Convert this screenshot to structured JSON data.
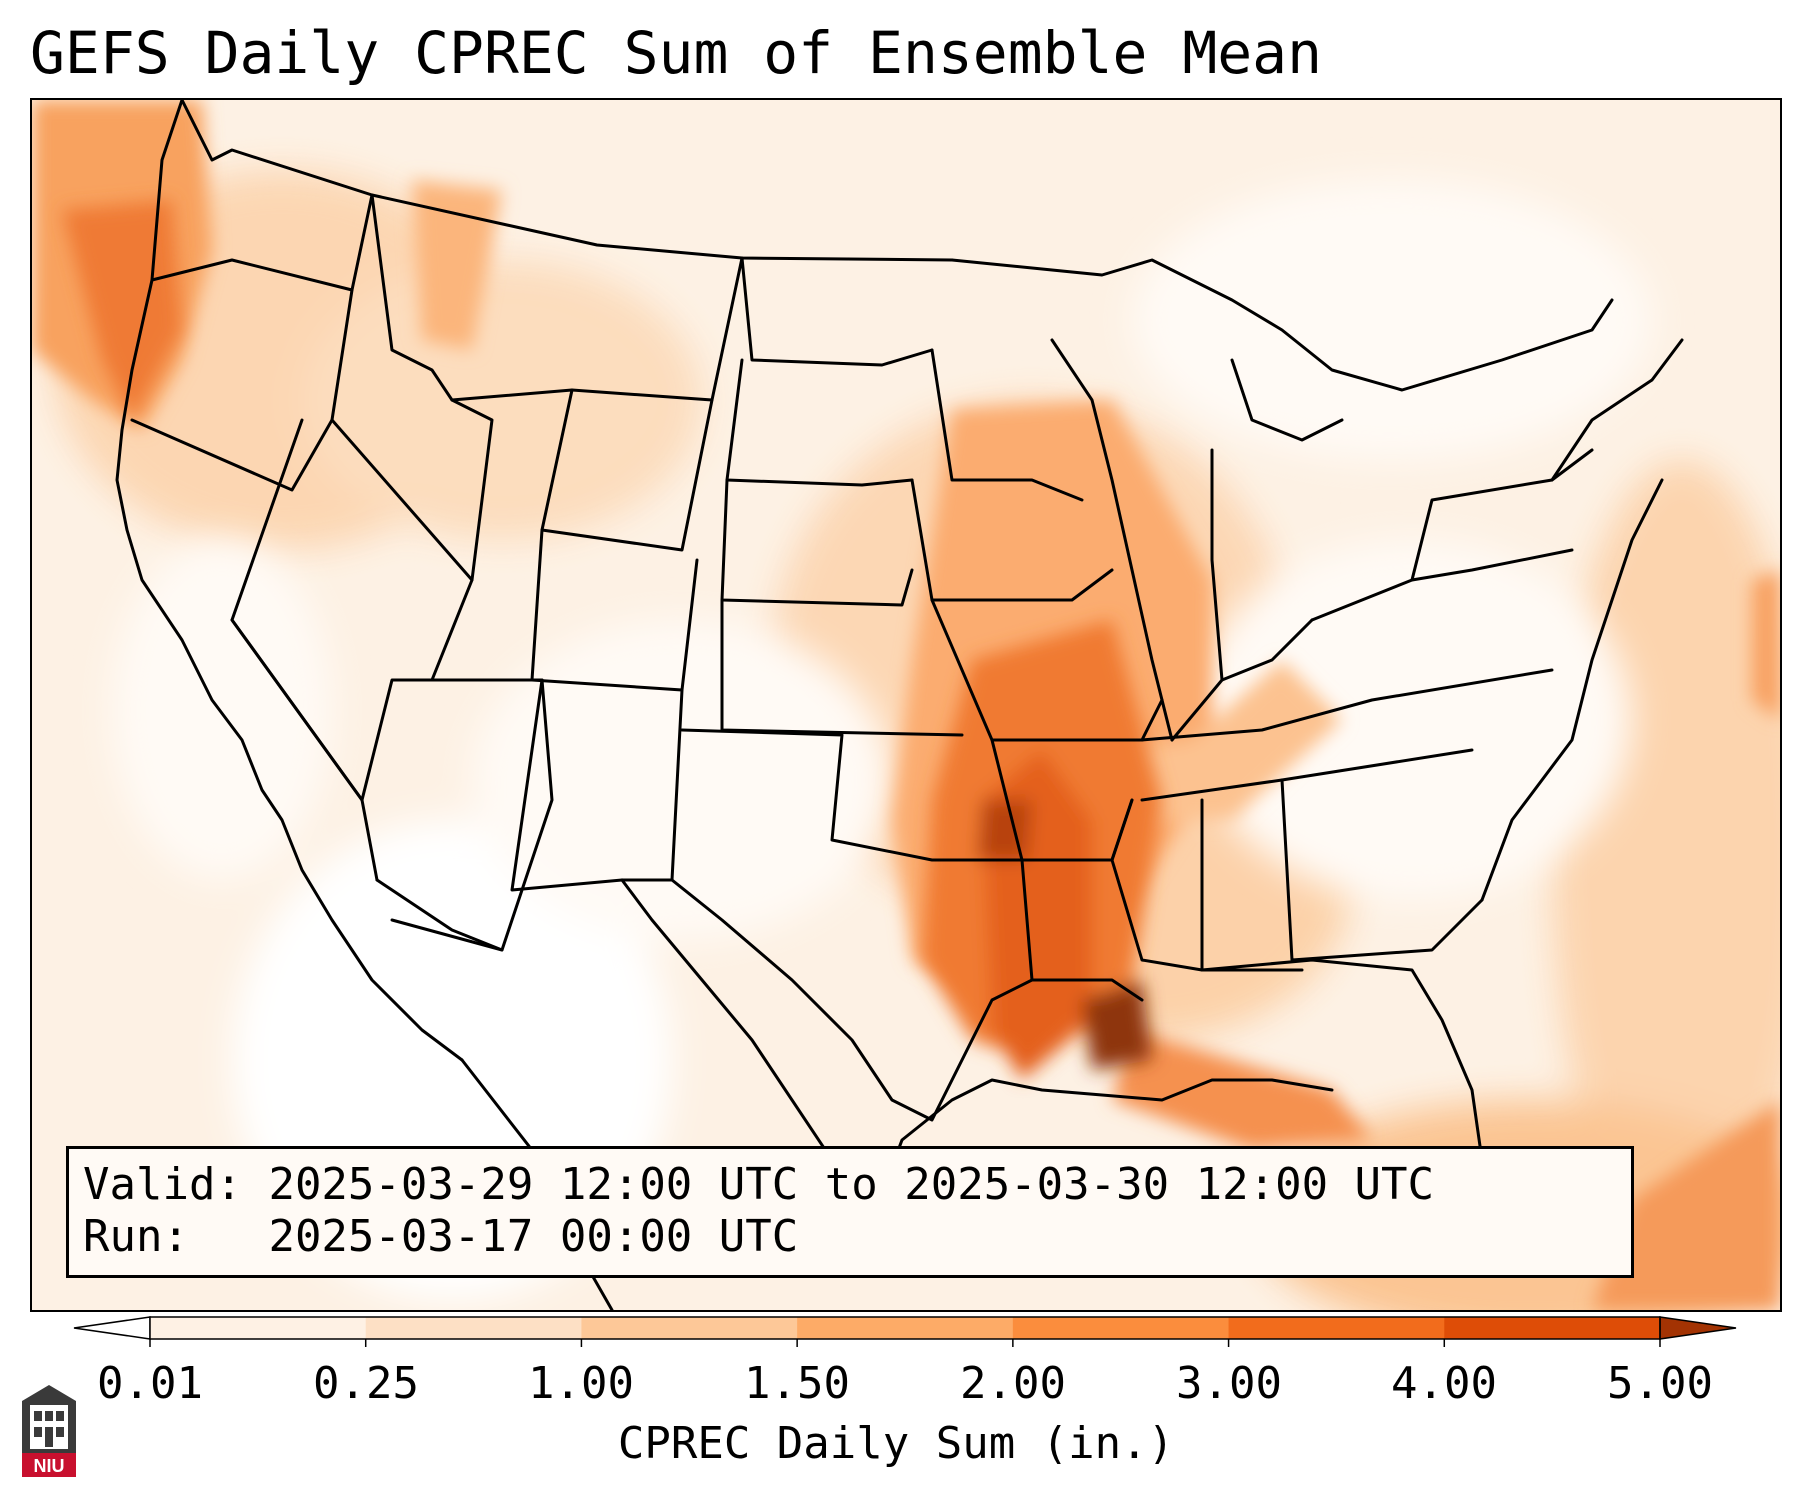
{
  "title": "GEFS Daily CPREC Sum of Ensemble Mean",
  "info": {
    "valid_label": "Valid:",
    "valid_value": "2025-03-29 12:00 UTC to 2025-03-30 12:00 UTC",
    "run_label": "Run:",
    "run_value": "2025-03-17 00:00 UTC"
  },
  "colorbar": {
    "title": "CPREC Daily Sum (in.)",
    "ticks": [
      "0.01",
      "0.25",
      "1.00",
      "1.50",
      "2.00",
      "3.00",
      "4.00",
      "5.00"
    ],
    "colors": [
      "#fef1e4",
      "#fde0c5",
      "#fdc898",
      "#fdab67",
      "#fb8d3d",
      "#f26c1c",
      "#de4d07"
    ],
    "under_color": "#ffffff",
    "over_color": "#a33303"
  },
  "logo": {
    "text": "NIU",
    "color": "#c8102e"
  },
  "map": {
    "ocean_color": "#fdf3e9",
    "precip_shades": [
      "#fdf3e9",
      "#fde4cc",
      "#fcd0a6",
      "#fbb57c",
      "#f8964f",
      "#ef7428",
      "#d95612",
      "#9c3d12"
    ]
  }
}
